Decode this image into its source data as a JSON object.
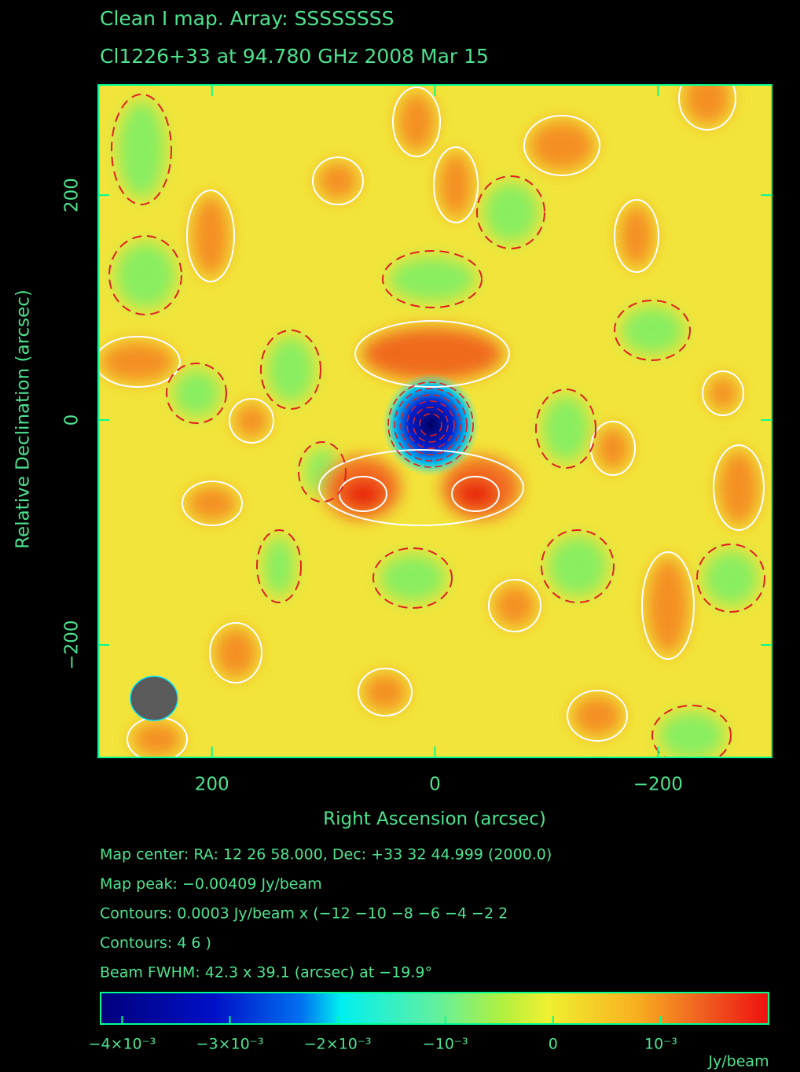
{
  "chart_data": {
    "type": "image",
    "title": "Clean I map.  Array:  SSSSSSSS",
    "subtitle": "Cl1226+33 at 94.780 GHz 2008 Mar 15",
    "xlabel": "Right Ascension  (arcsec)",
    "ylabel": "Relative Declination  (arcsec)",
    "xlim": [
      302,
      -302
    ],
    "ylim": [
      -300,
      298
    ],
    "xticks": [
      200,
      0,
      {
        "value": -200,
        "label": "−200"
      }
    ],
    "yticks": [
      200,
      0,
      {
        "value": -200,
        "label": "−200"
      }
    ],
    "notes": [
      "Map center:  RA: 12 26 58.000,  Dec: +33 32 44.999 (2000.0)",
      "Map peak: −0.00409 Jy/beam",
      "Contours: 0.0003 Jy/beam x (−12 −10 −8 −6 −4 −2 2",
      "Contours: 4 6 )",
      "Beam FWHM: 42.3 x 39.1 (arcsec) at −19.9°"
    ],
    "colorbar": {
      "label": "Jy/beam",
      "lim": [
        -0.0042,
        0.002
      ],
      "ticks": [
        {
          "value": -0.004,
          "label": "−4×10⁻³"
        },
        {
          "value": -0.003,
          "label": "−3×10⁻³"
        },
        {
          "value": -0.002,
          "label": "−2×10⁻³"
        },
        {
          "value": -0.001,
          "label": "−10⁻³"
        },
        0,
        {
          "value": 0.001,
          "label": "10⁻³"
        }
      ]
    }
  }
}
